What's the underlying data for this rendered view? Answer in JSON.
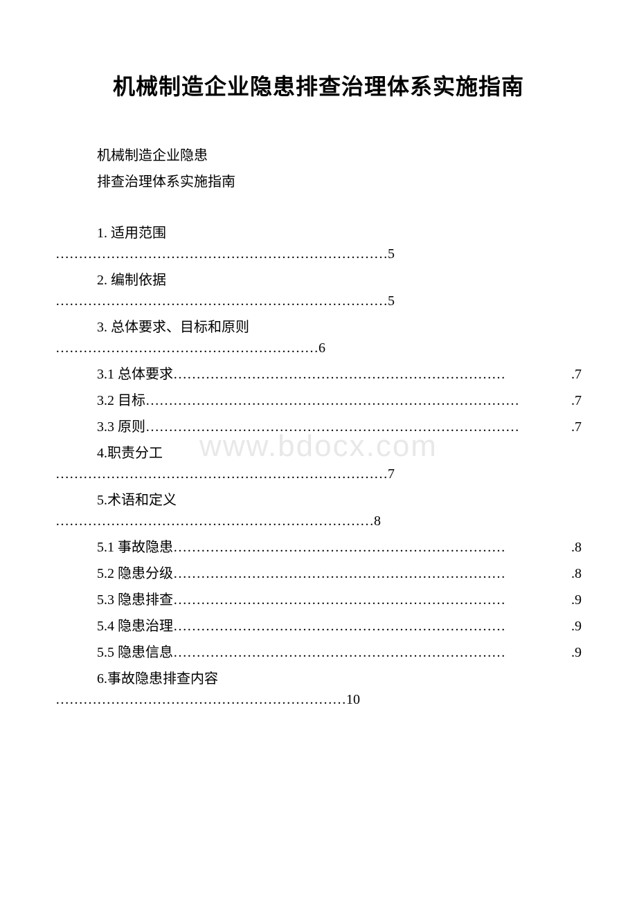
{
  "document": {
    "title": "机械制造企业隐患排查治理体系实施指南",
    "subtitle_line1": "机械制造企业隐患",
    "subtitle_line2": "排查治理体系实施指南",
    "watermark": "www.bdocx.com",
    "background_color": "#ffffff",
    "text_color": "#000000",
    "watermark_color": "#e8e8e8",
    "title_fontsize": 32,
    "body_fontsize": 20
  },
  "toc": {
    "entries": [
      {
        "type": "wrapped",
        "label": "1. 适用范围",
        "dots": "………………………………………………………………5"
      },
      {
        "type": "wrapped",
        "label": "2. 编制依据",
        "dots": "………………………………………………………………5"
      },
      {
        "type": "wrapped",
        "label": "3. 总体要求、目标和原则",
        "dots": "…………………………………………………6"
      },
      {
        "type": "inline",
        "label": "3.1 总体要求",
        "dots": "………………………………………………………………",
        "page": ".7"
      },
      {
        "type": "inline",
        "label": "3.2 目标",
        "dots": "………………………………………………………………………",
        "page": ".7"
      },
      {
        "type": "inline",
        "label": "3.3 原则",
        "dots": "………………………………………………………………………",
        "page": ".7"
      },
      {
        "type": "wrapped",
        "label": "4.职责分工",
        "dots": "………………………………………………………………7"
      },
      {
        "type": "wrapped",
        "label": "5.术语和定义",
        "dots": "……………………………………………………………8"
      },
      {
        "type": "inline",
        "label": "5.1 事故隐患",
        "dots": "………………………………………………………………",
        "page": ".8"
      },
      {
        "type": "inline",
        "label": "5.2 隐患分级",
        "dots": "………………………………………………………………",
        "page": ".8"
      },
      {
        "type": "inline",
        "label": "5.3 隐患排查",
        "dots": "………………………………………………………………",
        "page": ".9"
      },
      {
        "type": "inline",
        "label": "5.4 隐患治理",
        "dots": "………………………………………………………………",
        "page": ".9"
      },
      {
        "type": "inline",
        "label": "5.5 隐患信息",
        "dots": "………………………………………………………………",
        "page": ".9"
      },
      {
        "type": "wrapped",
        "label": "6.事故隐患排查内容",
        "dots": "………………………………………………………10"
      }
    ]
  }
}
